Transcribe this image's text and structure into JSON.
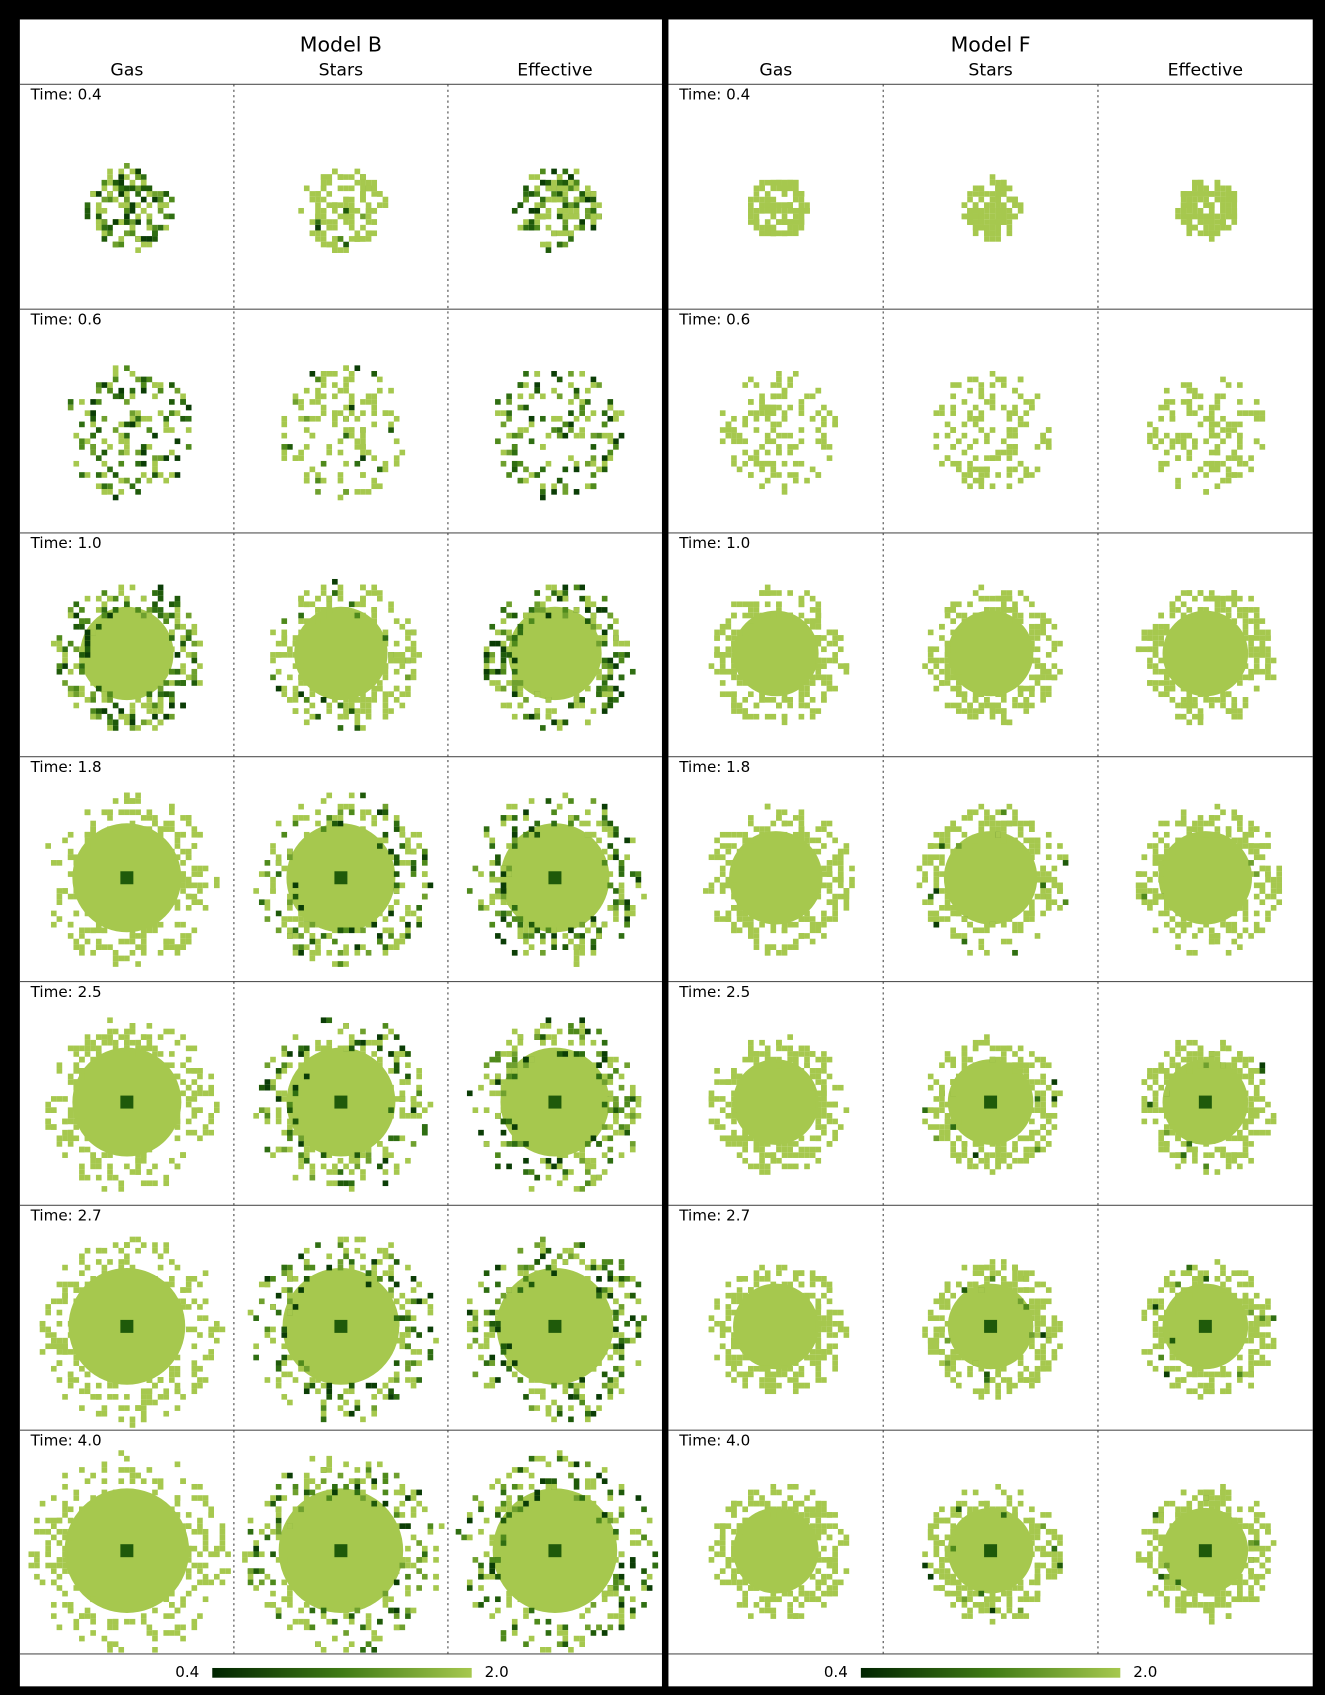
{
  "models": [
    {
      "title": "Model B",
      "columns": [
        "Gas",
        "Stars",
        "Effective"
      ],
      "rows": [
        {
          "time": "Time: 0.4"
        },
        {
          "time": "Time: 0.6"
        },
        {
          "time": "Time: 1.0"
        },
        {
          "time": "Time: 1.8"
        },
        {
          "time": "Time: 2.5"
        },
        {
          "time": "Time: 2.7"
        },
        {
          "time": "Time: 4.0"
        }
      ],
      "colorbar": {
        "min": "0.4",
        "max": "2.0"
      }
    },
    {
      "title": "Model F",
      "columns": [
        "Gas",
        "Stars",
        "Effective"
      ],
      "rows": [
        {
          "time": "Time: 0.4"
        },
        {
          "time": "Time: 0.6"
        },
        {
          "time": "Time: 1.0"
        },
        {
          "time": "Time: 1.8"
        },
        {
          "time": "Time: 2.5"
        },
        {
          "time": "Time: 2.7"
        },
        {
          "time": "Time: 4.0"
        }
      ],
      "colorbar": {
        "min": "0.4",
        "max": "2.0"
      }
    }
  ]
}
